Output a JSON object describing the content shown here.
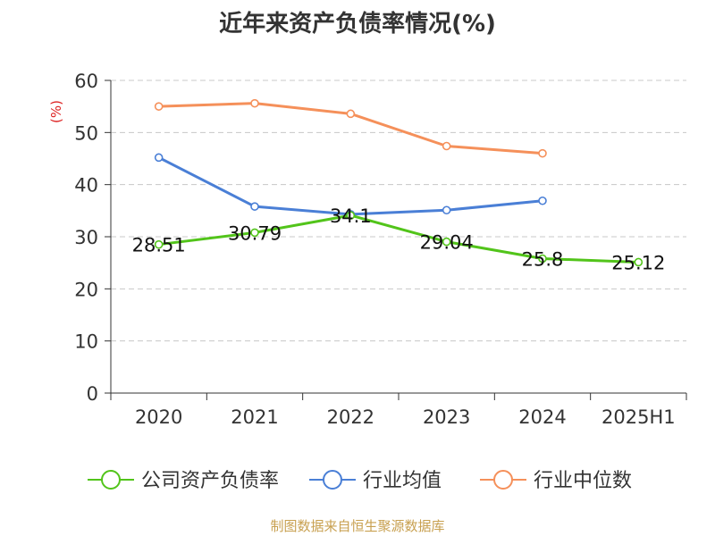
{
  "chart_data": {
    "type": "line",
    "title": "近年来资产负债率情况(%)",
    "ylabel": "(%)",
    "xlabel": "",
    "categories": [
      "2020",
      "2021",
      "2022",
      "2023",
      "2024",
      "2025H1"
    ],
    "ylim": [
      0,
      60
    ],
    "yticks": [
      0,
      10,
      20,
      30,
      40,
      50,
      60
    ],
    "grid": "horizontal-dashed",
    "legend_position": "bottom",
    "series": [
      {
        "name": "公司资产负债率",
        "color": "#52c41a",
        "values": [
          28.51,
          30.79,
          34.1,
          29.04,
          25.8,
          25.12
        ],
        "labels": [
          "28.51",
          "30.79",
          "34.1",
          "29.04",
          "25.8",
          "25.12"
        ]
      },
      {
        "name": "行业均值",
        "color": "#4a7fd6",
        "values": [
          45.2,
          35.8,
          34.3,
          35.1,
          36.9,
          null
        ],
        "labels": []
      },
      {
        "name": "行业中位数",
        "color": "#f5905a",
        "values": [
          55.0,
          55.6,
          53.6,
          47.4,
          46.0,
          null
        ],
        "labels": []
      }
    ]
  },
  "footer": {
    "source": "制图数据来自恒生聚源数据库"
  }
}
